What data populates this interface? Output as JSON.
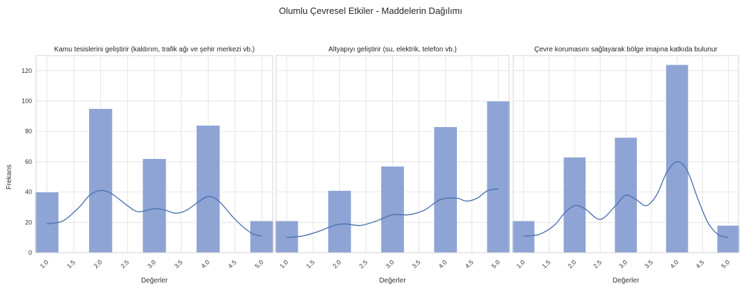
{
  "chart_data": {
    "type": "bar",
    "suptitle": "Olumlu Çevresel Etkiler - Maddelerin Dağılımı",
    "shared_y": true,
    "ylabel": "Frekans",
    "ylim": [
      0,
      130
    ],
    "yticks": [
      0,
      20,
      40,
      60,
      80,
      100,
      120
    ],
    "xlim": [
      0.8,
      5.2
    ],
    "xticks": [
      "1.0",
      "1.5",
      "2.0",
      "2.5",
      "3.0",
      "3.5",
      "4.0",
      "4.5",
      "5.0"
    ],
    "grid": true,
    "bar_color": "#8ea4d4",
    "line_color": "#4c72b0",
    "panels": [
      {
        "title": "Kamu tesislerini geliştirir (kaldırım, trafik ağı ve şehir merkezi vb.)",
        "xlabel": "Değerler",
        "bars": [
          {
            "x": 1.0,
            "value": 40
          },
          {
            "x": 2.0,
            "value": 95
          },
          {
            "x": 3.0,
            "value": 62
          },
          {
            "x": 4.0,
            "value": 84
          },
          {
            "x": 5.0,
            "value": 21
          }
        ],
        "kde": [
          [
            1.0,
            19
          ],
          [
            1.3,
            21
          ],
          [
            1.6,
            30
          ],
          [
            1.8,
            38
          ],
          [
            2.0,
            41
          ],
          [
            2.2,
            39
          ],
          [
            2.5,
            31
          ],
          [
            2.7,
            27
          ],
          [
            3.0,
            29
          ],
          [
            3.2,
            28
          ],
          [
            3.4,
            26
          ],
          [
            3.6,
            28
          ],
          [
            3.8,
            33
          ],
          [
            4.0,
            37
          ],
          [
            4.2,
            34
          ],
          [
            4.5,
            22
          ],
          [
            4.8,
            13
          ],
          [
            5.0,
            11
          ]
        ]
      },
      {
        "title": "Altyapıyı geliştirir (su, elektrik, telefon vb.)",
        "xlabel": "Değerler",
        "bars": [
          {
            "x": 1.0,
            "value": 21
          },
          {
            "x": 2.0,
            "value": 41
          },
          {
            "x": 3.0,
            "value": 57
          },
          {
            "x": 4.0,
            "value": 83
          },
          {
            "x": 5.0,
            "value": 100
          }
        ],
        "kde": [
          [
            1.0,
            10
          ],
          [
            1.3,
            11
          ],
          [
            1.6,
            14
          ],
          [
            1.9,
            18
          ],
          [
            2.1,
            19
          ],
          [
            2.4,
            18
          ],
          [
            2.7,
            21
          ],
          [
            3.0,
            25
          ],
          [
            3.3,
            25
          ],
          [
            3.6,
            28
          ],
          [
            3.9,
            35
          ],
          [
            4.2,
            36
          ],
          [
            4.4,
            34
          ],
          [
            4.6,
            36
          ],
          [
            4.8,
            41
          ],
          [
            5.0,
            42
          ]
        ]
      },
      {
        "title": "Çevre korumasını sağlayarak bölge imajına katkıda bulunur",
        "xlabel": "Değerler",
        "bars": [
          {
            "x": 1.0,
            "value": 21
          },
          {
            "x": 2.0,
            "value": 63
          },
          {
            "x": 3.0,
            "value": 76
          },
          {
            "x": 4.0,
            "value": 124
          },
          {
            "x": 5.0,
            "value": 18
          }
        ],
        "kde": [
          [
            1.0,
            11
          ],
          [
            1.3,
            12
          ],
          [
            1.6,
            18
          ],
          [
            1.8,
            26
          ],
          [
            2.0,
            31
          ],
          [
            2.2,
            29
          ],
          [
            2.5,
            22
          ],
          [
            2.8,
            31
          ],
          [
            3.0,
            38
          ],
          [
            3.2,
            35
          ],
          [
            3.4,
            31
          ],
          [
            3.6,
            38
          ],
          [
            3.8,
            53
          ],
          [
            4.0,
            60
          ],
          [
            4.2,
            54
          ],
          [
            4.4,
            36
          ],
          [
            4.6,
            20
          ],
          [
            4.8,
            12
          ],
          [
            5.0,
            10
          ]
        ]
      }
    ]
  }
}
